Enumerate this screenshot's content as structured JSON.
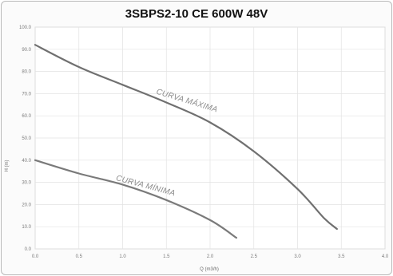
{
  "chart_data": {
    "type": "line",
    "title": "3SBPS2-10 CE 600W 48V",
    "xlabel": "Q (m3/h)",
    "ylabel": "H (m)",
    "xlim": [
      0,
      4.0
    ],
    "ylim": [
      0,
      100
    ],
    "x_ticks": [
      "0.0",
      "0.5",
      "1.0",
      "1.5",
      "2.0",
      "2.5",
      "3.0",
      "3.5",
      "4.0"
    ],
    "y_ticks": [
      "0.0",
      "10.0",
      "20.0",
      "30.0",
      "40.0",
      "50.0",
      "60.0",
      "70.0",
      "80.0",
      "90.0",
      "100.0"
    ],
    "grid": true,
    "series": [
      {
        "name": "CURVA MÁXIMA",
        "color": "#707070",
        "points": [
          [
            0.0,
            92
          ],
          [
            0.5,
            82
          ],
          [
            1.0,
            74
          ],
          [
            1.5,
            66
          ],
          [
            2.0,
            57
          ],
          [
            2.5,
            44
          ],
          [
            3.0,
            27
          ],
          [
            3.3,
            14
          ],
          [
            3.45,
            9
          ]
        ]
      },
      {
        "name": "CURVA MÍNIMA",
        "color": "#7a7a7a",
        "points": [
          [
            0.0,
            40
          ],
          [
            0.5,
            34
          ],
          [
            1.0,
            29
          ],
          [
            1.5,
            22
          ],
          [
            2.0,
            13
          ],
          [
            2.3,
            5
          ]
        ]
      }
    ]
  }
}
